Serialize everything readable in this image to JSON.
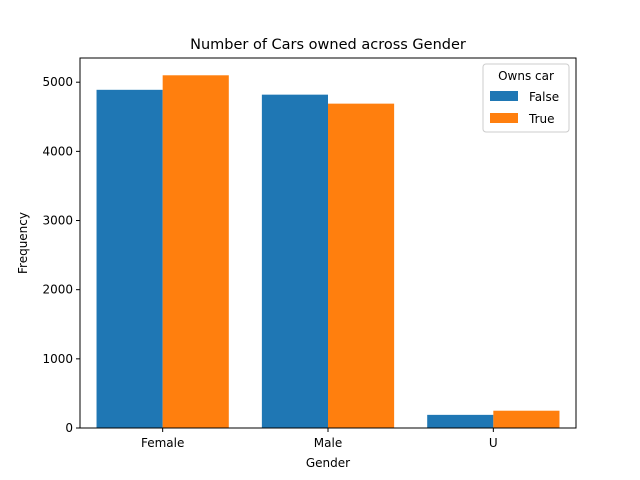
{
  "chart_data": {
    "type": "bar",
    "title": "Number of Cars owned across Gender",
    "xlabel": "Gender",
    "ylabel": "Frequency",
    "categories": [
      "Female",
      "Male",
      "U"
    ],
    "series": [
      {
        "name": "False",
        "color": "#1f77b4",
        "values": [
          4890,
          4820,
          190
        ]
      },
      {
        "name": "True",
        "color": "#ff7f0e",
        "values": [
          5100,
          4690,
          250
        ]
      }
    ],
    "ylim": [
      0,
      5350
    ],
    "yticks": [
      0,
      1000,
      2000,
      3000,
      4000,
      5000
    ],
    "legend": {
      "title": "Owns car",
      "placement": "top-right"
    },
    "grid": false
  }
}
